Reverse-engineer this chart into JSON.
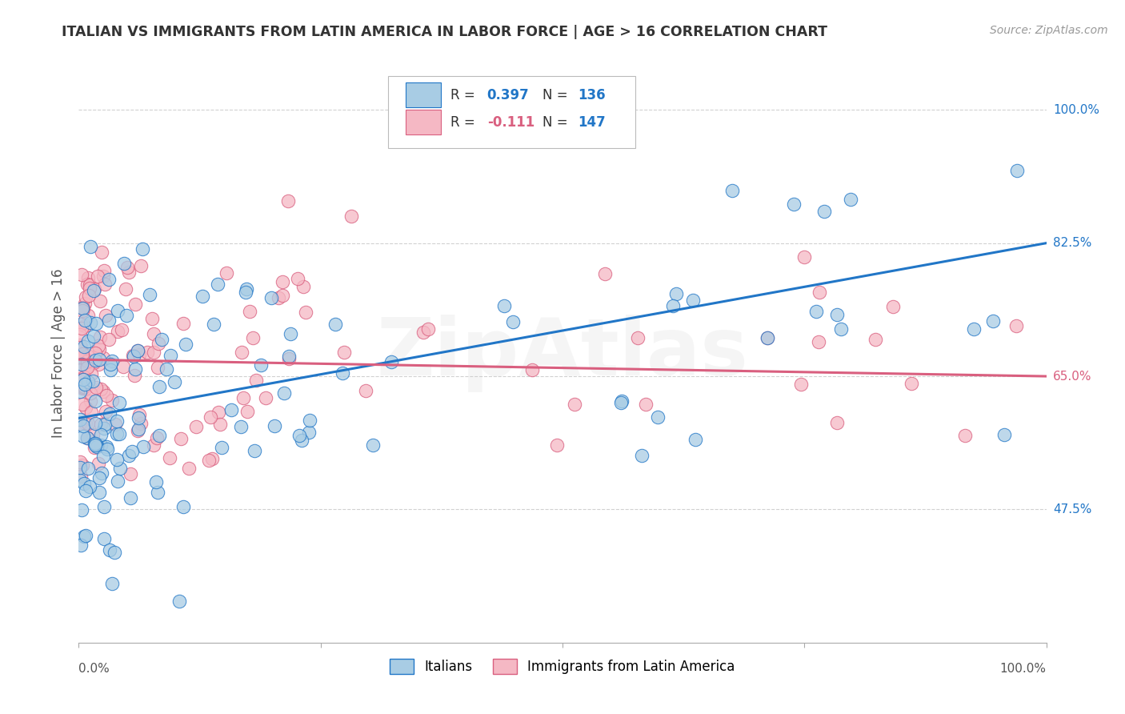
{
  "title": "ITALIAN VS IMMIGRANTS FROM LATIN AMERICA IN LABOR FORCE | AGE > 16 CORRELATION CHART",
  "source": "Source: ZipAtlas.com",
  "ylabel": "In Labor Force | Age > 16",
  "xlim": [
    0.0,
    1.0
  ],
  "ylim": [
    0.3,
    1.06
  ],
  "ytick_labels": [
    "47.5%",
    "65.0%",
    "82.5%",
    "100.0%"
  ],
  "ytick_values": [
    0.475,
    0.65,
    0.825,
    1.0
  ],
  "series1_color": "#a8cce4",
  "series2_color": "#f5b8c4",
  "line1_color": "#2176c7",
  "line2_color": "#d95f7f",
  "R1": 0.397,
  "N1": 136,
  "R2": -0.111,
  "N2": 147,
  "legend_label1": "Italians",
  "legend_label2": "Immigrants from Latin America",
  "watermark": "ZipAtlas",
  "background_color": "#ffffff",
  "grid_color": "#cccccc",
  "title_color": "#333333",
  "line1_y0": 0.595,
  "line1_y1": 0.825,
  "line2_y0": 0.672,
  "line2_y1": 0.65,
  "seed": 12345
}
